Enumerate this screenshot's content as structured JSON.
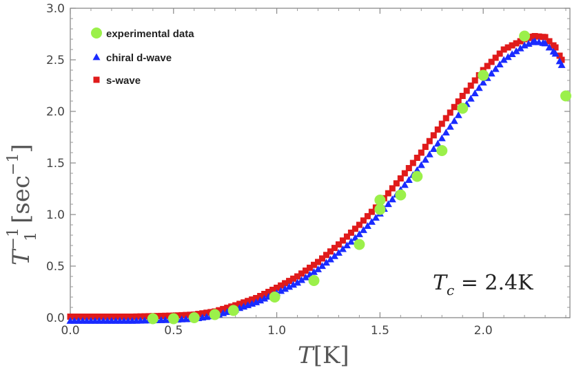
{
  "chart_data": {
    "type": "scatter",
    "title": "",
    "xlabel": {
      "symbol": "T",
      "unit": "[K]"
    },
    "ylabel": {
      "symbol": "T",
      "subscript": "1",
      "superscript": "−1",
      "unit_open": "[sec",
      "unit_sup": "−1",
      "unit_close": "]"
    },
    "xlim": [
      0.0,
      2.42
    ],
    "ylim": [
      0.0,
      3.0
    ],
    "xticks": [
      0.0,
      0.5,
      1.0,
      1.5,
      2.0
    ],
    "xtick_labels": [
      "0.0",
      "0.5",
      "1.0",
      "1.5",
      "2.0"
    ],
    "yticks": [
      0.0,
      0.5,
      1.0,
      1.5,
      2.0,
      2.5,
      3.0
    ],
    "ytick_labels": [
      "0.0",
      "0.5",
      "1.0",
      "1.5",
      "2.0",
      "2.5",
      "3.0"
    ],
    "grid": false,
    "legend_position": "top-left",
    "annotation": {
      "symbol": "T",
      "subscript": "c",
      "text": " = 2.4K",
      "position": "bottom-right"
    },
    "series": [
      {
        "name": "experimental data",
        "marker": "circle",
        "color": "#9BF04A",
        "x": [
          0.4,
          0.5,
          0.6,
          0.7,
          0.79,
          0.99,
          1.18,
          1.4,
          1.5,
          1.5,
          1.6,
          1.68,
          1.8,
          1.9,
          2.0,
          2.2,
          2.4
        ],
        "y": [
          -0.01,
          -0.01,
          0.0,
          0.03,
          0.07,
          0.2,
          0.36,
          0.71,
          1.05,
          1.14,
          1.19,
          1.37,
          1.62,
          2.03,
          2.35,
          2.73,
          2.15
        ]
      },
      {
        "name": "chiral d-wave",
        "marker": "triangle",
        "color": "#1A2BFF",
        "x": [
          0.0,
          0.3,
          0.5,
          0.6,
          0.7,
          0.8,
          0.9,
          1.0,
          1.1,
          1.2,
          1.3,
          1.4,
          1.5,
          1.6,
          1.7,
          1.8,
          1.9,
          2.0,
          2.1,
          2.2,
          2.25,
          2.3,
          2.35,
          2.38
        ],
        "y": [
          -0.03,
          -0.03,
          -0.02,
          -0.01,
          0.02,
          0.08,
          0.15,
          0.24,
          0.34,
          0.47,
          0.63,
          0.81,
          1.01,
          1.24,
          1.48,
          1.74,
          2.02,
          2.28,
          2.5,
          2.64,
          2.68,
          2.66,
          2.56,
          2.45
        ]
      },
      {
        "name": "s-wave",
        "marker": "square",
        "color": "#E01B1B",
        "x": [
          0.0,
          0.3,
          0.5,
          0.6,
          0.7,
          0.8,
          0.9,
          1.0,
          1.1,
          1.2,
          1.3,
          1.4,
          1.5,
          1.6,
          1.7,
          1.8,
          1.9,
          2.0,
          2.1,
          2.2,
          2.25,
          2.3,
          2.35,
          2.38
        ],
        "y": [
          0.01,
          0.01,
          0.02,
          0.03,
          0.06,
          0.12,
          0.19,
          0.29,
          0.4,
          0.54,
          0.71,
          0.9,
          1.11,
          1.35,
          1.6,
          1.88,
          2.15,
          2.4,
          2.6,
          2.7,
          2.73,
          2.72,
          2.62,
          2.5
        ]
      }
    ]
  }
}
